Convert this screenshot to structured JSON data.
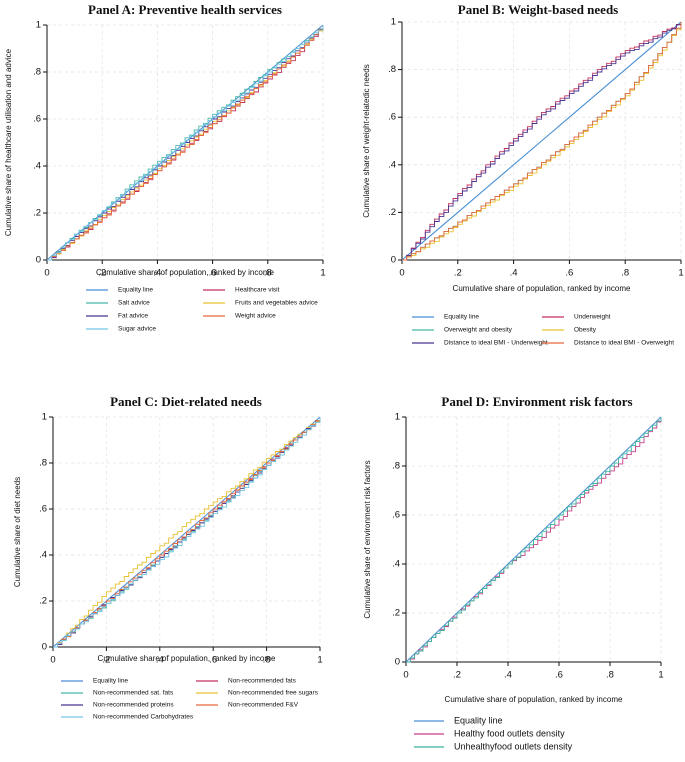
{
  "chart_data": [
    {
      "panel": "A",
      "type": "line",
      "title": "Panel A: Preventive health services",
      "xlabel": "Cumulative share of population, ranked by income",
      "ylabel": "Cumulative share of healthcare utilisation and advice",
      "xlim": [
        0,
        1
      ],
      "ylim": [
        0,
        1
      ],
      "xticks": [
        "0",
        ".2",
        ".4",
        ".6",
        ".8",
        "1"
      ],
      "yticks": [
        "0",
        ".2",
        ".4",
        ".6",
        ".8",
        "1"
      ],
      "x": [
        0,
        0.1,
        0.2,
        0.3,
        0.4,
        0.5,
        0.6,
        0.7,
        0.8,
        0.9,
        1
      ],
      "series": [
        {
          "name": "Equality line",
          "color": "#4a8fd6",
          "values": [
            0,
            0.1,
            0.2,
            0.3,
            0.4,
            0.5,
            0.6,
            0.7,
            0.8,
            0.9,
            1
          ]
        },
        {
          "name": "Healthcare visit",
          "color": "#c0325e",
          "values": [
            0,
            0.09,
            0.18,
            0.28,
            0.38,
            0.48,
            0.58,
            0.67,
            0.77,
            0.87,
            1
          ]
        },
        {
          "name": "Salt advice",
          "color": "#47b8a8",
          "values": [
            0,
            0.11,
            0.21,
            0.32,
            0.42,
            0.52,
            0.62,
            0.71,
            0.81,
            0.9,
            1
          ]
        },
        {
          "name": "Fruits and vegetables advice",
          "color": "#e8c02e",
          "values": [
            0,
            0.09,
            0.19,
            0.29,
            0.39,
            0.49,
            0.59,
            0.68,
            0.78,
            0.88,
            1
          ]
        },
        {
          "name": "Fat advice",
          "color": "#4b3591",
          "values": [
            0,
            0.1,
            0.2,
            0.3,
            0.4,
            0.5,
            0.6,
            0.69,
            0.79,
            0.89,
            1
          ]
        },
        {
          "name": "Weight advice",
          "color": "#e8693c",
          "values": [
            0,
            0.09,
            0.18,
            0.28,
            0.38,
            0.48,
            0.58,
            0.68,
            0.78,
            0.88,
            1
          ]
        },
        {
          "name": "Sugar advice",
          "color": "#72c6e4",
          "values": [
            0,
            0.11,
            0.21,
            0.31,
            0.41,
            0.51,
            0.61,
            0.7,
            0.8,
            0.9,
            1
          ]
        }
      ],
      "legend_columns": 2
    },
    {
      "panel": "B",
      "type": "line",
      "title": "Panel B: Weight-based needs",
      "xlabel": "Cumulative share of population, ranked by income",
      "ylabel": "Cumulative share of weight-relatedic needs",
      "xlim": [
        0,
        1
      ],
      "ylim": [
        0,
        1
      ],
      "xticks": [
        "0",
        ".2",
        ".4",
        ".6",
        ".8",
        "1"
      ],
      "yticks": [
        "0",
        ".2",
        ".4",
        ".6",
        ".8",
        "1"
      ],
      "x": [
        0,
        0.1,
        0.2,
        0.3,
        0.4,
        0.5,
        0.6,
        0.7,
        0.8,
        0.9,
        1
      ],
      "series": [
        {
          "name": "Equality line",
          "color": "#4a8fd6",
          "values": [
            0,
            0.1,
            0.2,
            0.3,
            0.4,
            0.5,
            0.6,
            0.7,
            0.8,
            0.9,
            1
          ]
        },
        {
          "name": "Underweight",
          "color": "#c0325e",
          "values": [
            0,
            0.15,
            0.28,
            0.4,
            0.51,
            0.62,
            0.71,
            0.8,
            0.88,
            0.94,
            1
          ]
        },
        {
          "name": "Overweight and obesity",
          "color": "#47b8a8",
          "values": [
            0,
            0.08,
            0.16,
            0.24,
            0.32,
            0.41,
            0.5,
            0.6,
            0.7,
            0.84,
            1
          ]
        },
        {
          "name": "Obesity",
          "color": "#e8c02e",
          "values": [
            0,
            0.07,
            0.15,
            0.23,
            0.31,
            0.4,
            0.49,
            0.59,
            0.69,
            0.83,
            1
          ]
        },
        {
          "name": "Distance to ideal BMI - Underweight",
          "color": "#4b3591",
          "values": [
            0,
            0.14,
            0.27,
            0.39,
            0.5,
            0.61,
            0.7,
            0.79,
            0.87,
            0.93,
            1
          ]
        },
        {
          "name": "Distance to ideal BMI - Overweight",
          "color": "#e8693c",
          "values": [
            0,
            0.08,
            0.16,
            0.24,
            0.32,
            0.41,
            0.5,
            0.6,
            0.7,
            0.84,
            1
          ]
        }
      ],
      "legend_columns": 2
    },
    {
      "panel": "C",
      "type": "line",
      "title": "Panel C: Diet-related needs",
      "xlabel": "Cumulative share of population, ranked by income",
      "ylabel": "Cumulative share of diet needs",
      "xlim": [
        0,
        1
      ],
      "ylim": [
        0,
        1
      ],
      "xticks": [
        "0",
        ".2",
        ".4",
        ".6",
        ".8",
        "1"
      ],
      "yticks": [
        "0",
        ".2",
        ".4",
        ".6",
        ".8",
        "1"
      ],
      "x": [
        0,
        0.1,
        0.2,
        0.3,
        0.4,
        0.5,
        0.6,
        0.7,
        0.8,
        0.9,
        1
      ],
      "series": [
        {
          "name": "Equality line",
          "color": "#4a8fd6",
          "values": [
            0,
            0.1,
            0.2,
            0.3,
            0.4,
            0.5,
            0.6,
            0.7,
            0.8,
            0.9,
            1
          ]
        },
        {
          "name": "Non-recommended fats",
          "color": "#c0325e",
          "values": [
            0,
            0.1,
            0.2,
            0.29,
            0.39,
            0.49,
            0.59,
            0.7,
            0.8,
            0.9,
            1
          ]
        },
        {
          "name": "Non-recommended sat. fats",
          "color": "#47b8a8",
          "values": [
            0,
            0.1,
            0.19,
            0.29,
            0.39,
            0.49,
            0.59,
            0.69,
            0.8,
            0.9,
            1
          ]
        },
        {
          "name": "Non-recommended free sugars",
          "color": "#e8c02e",
          "values": [
            0,
            0.12,
            0.24,
            0.34,
            0.44,
            0.54,
            0.63,
            0.72,
            0.82,
            0.91,
            1
          ]
        },
        {
          "name": "Non-recommended proteins",
          "color": "#4b3591",
          "values": [
            0,
            0.1,
            0.2,
            0.29,
            0.39,
            0.49,
            0.59,
            0.69,
            0.79,
            0.9,
            1
          ]
        },
        {
          "name": "Non-recommended F&V",
          "color": "#e8693c",
          "values": [
            0,
            0.1,
            0.2,
            0.3,
            0.4,
            0.5,
            0.6,
            0.7,
            0.8,
            0.9,
            1
          ]
        },
        {
          "name": "Non-recommended Carbohydrates",
          "color": "#72c6e4",
          "values": [
            0,
            0.1,
            0.19,
            0.29,
            0.38,
            0.48,
            0.58,
            0.68,
            0.79,
            0.89,
            1
          ]
        }
      ],
      "legend_columns": 2
    },
    {
      "panel": "D",
      "type": "line",
      "title": "Panel D: Environment risk factors",
      "xlabel": "Cumulative share of population, ranked by income",
      "ylabel": "Cumulative share of environment risk factors",
      "xlim": [
        0,
        1
      ],
      "ylim": [
        0,
        1
      ],
      "xticks": [
        "0",
        ".2",
        ".4",
        ".6",
        ".8",
        "1"
      ],
      "yticks": [
        "0",
        ".2",
        ".4",
        ".6",
        ".8",
        "1"
      ],
      "x": [
        0,
        0.1,
        0.2,
        0.3,
        0.4,
        0.5,
        0.6,
        0.7,
        0.8,
        0.9,
        1
      ],
      "series": [
        {
          "name": "Equality line",
          "color": "#4a8fd6",
          "values": [
            0,
            0.1,
            0.2,
            0.3,
            0.4,
            0.5,
            0.6,
            0.7,
            0.8,
            0.9,
            1
          ]
        },
        {
          "name": "Healthy food outlets density",
          "color": "#c83e8c",
          "values": [
            0,
            0.1,
            0.2,
            0.3,
            0.4,
            0.48,
            0.58,
            0.69,
            0.78,
            0.88,
            1
          ]
        },
        {
          "name": "Unhealthyfood outlets density",
          "color": "#38b59c",
          "values": [
            0,
            0.1,
            0.2,
            0.3,
            0.4,
            0.5,
            0.6,
            0.7,
            0.8,
            0.9,
            1
          ]
        }
      ],
      "legend_columns": 1
    }
  ]
}
